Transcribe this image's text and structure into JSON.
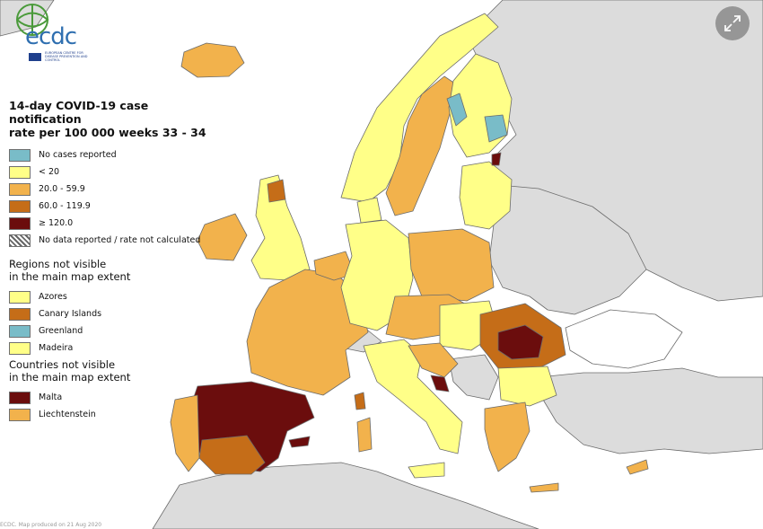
{
  "logo": {
    "text": "ecdc",
    "subtitle": "EUROPEAN CENTRE FOR DISEASE PREVENTION AND CONTROL"
  },
  "legend": {
    "title_line1": "14-day COVID-19 case notification",
    "title_line2": "rate per 100 000 weeks 33 - 34",
    "items": [
      {
        "label": "No cases reported",
        "color": "#79bcc8"
      },
      {
        "label": "< 20",
        "color": "#ffff88"
      },
      {
        "label": "20.0 - 59.9",
        "color": "#f2b24c"
      },
      {
        "label": "60.0 - 119.9",
        "color": "#c56d18"
      },
      {
        "label": "≥ 120.0",
        "color": "#6b0d0d"
      },
      {
        "label": "No data reported / rate not calculated",
        "color": "hatch"
      }
    ],
    "regions_title_line1": "Regions not visible",
    "regions_title_line2": "in the main map extent",
    "regions": [
      {
        "label": "Azores",
        "color": "#ffff88"
      },
      {
        "label": "Canary Islands",
        "color": "#c56d18"
      },
      {
        "label": "Greenland",
        "color": "#79bcc8"
      },
      {
        "label": "Madeira",
        "color": "#ffff88"
      }
    ],
    "countries_title_line1": "Countries not visible",
    "countries_title_line2": "in the main map extent",
    "countries": [
      {
        "label": "Malta",
        "color": "#6b0d0d"
      },
      {
        "label": "Liechtenstein",
        "color": "#f2b24c"
      }
    ]
  },
  "colors": {
    "sea": "#ffffff",
    "non_eu_land": "#dcdcdc",
    "border": "#666666"
  },
  "footer": {
    "text": "ECDC. Map produced on 21 Aug 2020"
  },
  "expand_icon": "expand-icon"
}
